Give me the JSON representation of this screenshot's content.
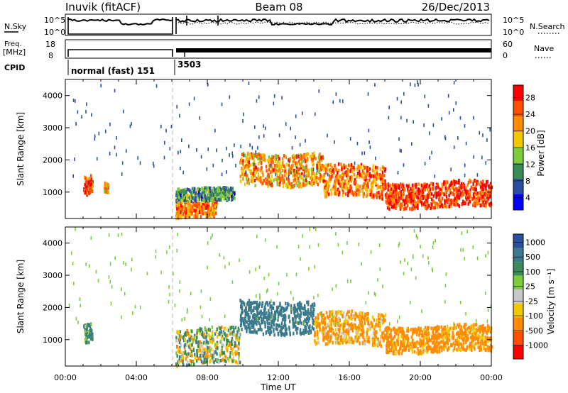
{
  "header": {
    "station": "Inuvik (fitACF)",
    "beam": "Beam 08",
    "date": "26/Dec/2013"
  },
  "strips": {
    "nsky_label": "N.Sky",
    "nsky_ticks": [
      "10^5",
      "10^0"
    ],
    "nsearch_label": "N.Search",
    "nsearch_ticks": [
      "10^5",
      "10^0"
    ],
    "freq_label_1": "Freq.",
    "freq_label_2": "[MHz]",
    "freq_ticks": [
      "18",
      "8"
    ],
    "nave_label": "Nave",
    "nave_ticks": [
      "60",
      "0"
    ],
    "cpid_label": "CPID",
    "cpid_mode_1": "normal (fast) 151",
    "cpid_mode_2": "3503"
  },
  "colors": {
    "power_scale": [
      "#0000ff",
      "#2a4fa0",
      "#3c8c5a",
      "#7ccc3c",
      "#f0c800",
      "#ff8c00",
      "#ff5000",
      "#ff0000"
    ],
    "velocity_scale": [
      "#2a4fa0",
      "#3a7a8c",
      "#3c8c5a",
      "#7ccc3c",
      "#c8c8c8",
      "#f0c800",
      "#ff8c00",
      "#ff5000",
      "#ff0000"
    ]
  },
  "chart_data": [
    {
      "type": "heatmap",
      "title": "",
      "xlabel": "Time UT",
      "ylabel": "Slant Range [km]",
      "x_ticks": [
        "00:00",
        "04:00",
        "08:00",
        "12:00",
        "16:00",
        "20:00",
        "00:00"
      ],
      "x_range_hours": [
        0,
        24
      ],
      "y_ticks": [
        1000,
        2000,
        3000,
        4000
      ],
      "ylim": [
        180,
        4500
      ],
      "colorbar": {
        "label": "Power [dB]",
        "ticks": [
          "28",
          "24",
          "20",
          "16",
          "12",
          "8",
          "4"
        ],
        "range": [
          0,
          30
        ]
      },
      "scatter_regions": [
        {
          "t": [
            1.0,
            1.5
          ],
          "r": [
            850,
            1450
          ],
          "value": 25
        },
        {
          "t": [
            2.1,
            2.4
          ],
          "r": [
            950,
            1250
          ],
          "value": 18
        },
        {
          "t": [
            6.2,
            8.5
          ],
          "r": [
            200,
            700
          ],
          "value": 22
        },
        {
          "t": [
            6.2,
            9.5
          ],
          "r": [
            700,
            1100
          ],
          "value": 10
        },
        {
          "t": [
            9.8,
            14.5
          ],
          "r": [
            1200,
            2200
          ],
          "value": 20
        },
        {
          "t": [
            14.5,
            18.0
          ],
          "r": [
            800,
            1800
          ],
          "value": 22
        },
        {
          "t": [
            18.0,
            24.0
          ],
          "r": [
            500,
            1300
          ],
          "value": 26
        }
      ]
    },
    {
      "type": "heatmap",
      "title": "",
      "xlabel": "Time UT",
      "ylabel": "Slant Range [km]",
      "x_ticks": [
        "00:00",
        "04:00",
        "08:00",
        "12:00",
        "16:00",
        "20:00",
        "00:00"
      ],
      "x_range_hours": [
        0,
        24
      ],
      "y_ticks": [
        1000,
        2000,
        3000,
        4000
      ],
      "ylim": [
        180,
        4500
      ],
      "colorbar": {
        "label": "Velocity [m s⁻¹]",
        "ticks": [
          "1000",
          "500",
          "100",
          "25",
          "-25",
          "-100",
          "-500",
          "-1000"
        ],
        "range": [
          -1000,
          1000
        ]
      },
      "scatter_regions": [
        {
          "t": [
            1.0,
            1.5
          ],
          "r": [
            850,
            1450
          ],
          "value": 100
        },
        {
          "t": [
            6.2,
            9.8
          ],
          "r": [
            200,
            1300
          ],
          "value": 0
        },
        {
          "t": [
            9.8,
            14.0
          ],
          "r": [
            1200,
            2200
          ],
          "value": 300
        },
        {
          "t": [
            14.0,
            18.0
          ],
          "r": [
            800,
            1800
          ],
          "value": -150
        },
        {
          "t": [
            18.0,
            24.0
          ],
          "r": [
            600,
            1400
          ],
          "value": -200
        }
      ]
    }
  ]
}
